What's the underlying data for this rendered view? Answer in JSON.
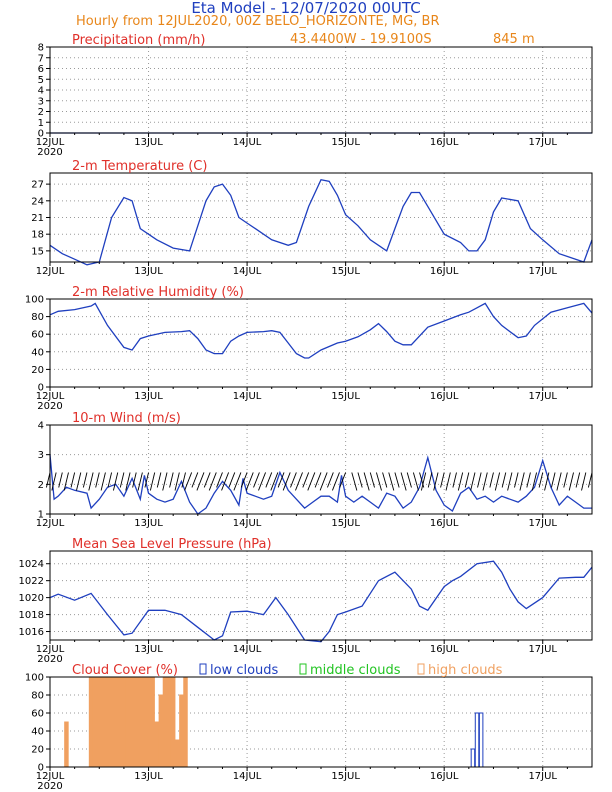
{
  "header": {
    "title": "Eta Model - 12/07/2020 00UTC",
    "subtitle": "Hourly from 12JUL2020, 00Z  BELO_HORIZONTE, MG, BR",
    "location": "43.4400W - 19.9100S",
    "elevation": "845  m"
  },
  "colors": {
    "title": "#1f3fbf",
    "subtitle": "#e8861a",
    "panel_title": "#e0302a",
    "line": "#1f3fbf",
    "low_clouds": "#1f3fbf",
    "middle_clouds": "#22c422",
    "high_clouds": "#f0a060"
  },
  "x_axis": {
    "labels": [
      "12JUL",
      "13JUL",
      "14JUL",
      "15JUL",
      "16JUL",
      "17JUL"
    ],
    "label_hours": [
      0,
      24,
      48,
      72,
      96,
      120
    ],
    "year_label": "2020",
    "range_hours": [
      0,
      132
    ]
  },
  "chart_data": [
    {
      "id": "precip",
      "type": "line",
      "title": "Precipitation (mm/h)",
      "ylim": [
        0,
        8
      ],
      "yticks": [
        0,
        1,
        2,
        3,
        4,
        5,
        6,
        7,
        8
      ],
      "series": [
        {
          "x": [
            0,
            132
          ],
          "y": [
            0,
            0
          ]
        }
      ],
      "show_year": true
    },
    {
      "id": "temp",
      "type": "line",
      "title": "2-m Temperature (C)",
      "ylim": [
        13,
        29
      ],
      "yticks": [
        15,
        18,
        21,
        24,
        27
      ],
      "series": [
        {
          "x": [
            0,
            3,
            6,
            9,
            12,
            15,
            18,
            20,
            22,
            24,
            26,
            30,
            34,
            38,
            40,
            42,
            44,
            46,
            48,
            50,
            54,
            58,
            60,
            63,
            66,
            68,
            70,
            72,
            75,
            78,
            82,
            84,
            86,
            88,
            90,
            92,
            96,
            100,
            102,
            104,
            106,
            108,
            110,
            114,
            117,
            120,
            124,
            128,
            130,
            132
          ],
          "y": [
            16,
            14.5,
            13.5,
            12.5,
            13,
            21,
            24.6,
            24,
            19,
            18,
            17,
            15.5,
            15,
            24,
            26.5,
            27,
            25,
            21,
            20,
            19,
            17,
            16,
            16.5,
            23,
            27.8,
            27.5,
            25,
            21.5,
            19.5,
            17,
            15,
            19,
            23,
            25.5,
            25.5,
            23,
            18,
            16.5,
            15,
            15,
            17,
            22,
            24.5,
            24,
            19,
            17,
            14.5,
            13.5,
            13,
            17
          ]
        }
      ],
      "show_year": false
    },
    {
      "id": "rh",
      "type": "line",
      "title": "2-m Relative Humidity (%)",
      "ylim": [
        0,
        100
      ],
      "yticks": [
        0,
        20,
        40,
        60,
        80,
        100
      ],
      "series": [
        {
          "x": [
            0,
            2,
            6,
            10,
            11,
            14,
            18,
            20,
            22,
            24,
            28,
            32,
            34,
            36,
            38,
            40,
            42,
            44,
            46,
            48,
            52,
            54,
            56,
            58,
            60,
            62,
            63,
            66,
            70,
            72,
            75,
            78,
            80,
            82,
            84,
            86,
            88,
            92,
            96,
            100,
            102,
            104,
            106,
            108,
            110,
            114,
            116,
            118,
            122,
            126,
            130,
            132
          ],
          "y": [
            82,
            86,
            88,
            92,
            95,
            70,
            45,
            42,
            55,
            58,
            62,
            63,
            64,
            55,
            42,
            38,
            38,
            52,
            58,
            62,
            63,
            64,
            62,
            50,
            38,
            33,
            33,
            42,
            50,
            52,
            57,
            65,
            72,
            63,
            52,
            48,
            48,
            68,
            75,
            82,
            85,
            90,
            95,
            80,
            70,
            56,
            58,
            70,
            85,
            90,
            95,
            84
          ]
        }
      ],
      "show_year": true
    },
    {
      "id": "wind",
      "type": "line",
      "title": "10-m Wind (m/s)",
      "ylim": [
        1,
        4
      ],
      "yticks": [
        1,
        2,
        3,
        4
      ],
      "series": [
        {
          "x": [
            0,
            1,
            2,
            4,
            6,
            9,
            10,
            12,
            14,
            16,
            18,
            20,
            22,
            23,
            24,
            26,
            28,
            30,
            32,
            34,
            36,
            38,
            40,
            42,
            44,
            46,
            47,
            48,
            50,
            52,
            54,
            56,
            58,
            60,
            62,
            64,
            66,
            68,
            70,
            71,
            72,
            74,
            76,
            78,
            80,
            82,
            84,
            86,
            88,
            90,
            92,
            94,
            96,
            98,
            100,
            102,
            104,
            106,
            108,
            110,
            112,
            114,
            116,
            118,
            120,
            122,
            124,
            126,
            128,
            130,
            132
          ],
          "y": [
            3.0,
            1.5,
            1.6,
            1.9,
            1.8,
            1.7,
            1.2,
            1.5,
            1.9,
            2.0,
            1.6,
            2.2,
            1.5,
            2.3,
            1.7,
            1.5,
            1.4,
            1.5,
            2.1,
            1.4,
            1.0,
            1.2,
            1.7,
            2.1,
            1.8,
            1.3,
            2.2,
            1.7,
            1.6,
            1.5,
            1.6,
            2.4,
            1.8,
            1.5,
            1.2,
            1.4,
            1.6,
            1.6,
            1.4,
            2.3,
            1.6,
            1.4,
            1.6,
            1.4,
            1.2,
            1.7,
            1.6,
            1.2,
            1.4,
            1.9,
            2.9,
            1.8,
            1.3,
            1.1,
            1.7,
            1.9,
            1.5,
            1.6,
            1.4,
            1.6,
            1.5,
            1.4,
            1.6,
            1.9,
            2.8,
            1.9,
            1.3,
            1.6,
            1.4,
            1.2,
            1.2
          ]
        }
      ],
      "show_year": false
    },
    {
      "id": "mslp",
      "type": "line",
      "title": "Mean Sea Level Pressure (hPa)",
      "ylim": [
        1015,
        1025.5
      ],
      "yticks": [
        1016,
        1018,
        1020,
        1022,
        1024
      ],
      "series": [
        {
          "x": [
            0,
            2,
            6,
            10,
            14,
            18,
            20,
            24,
            28,
            32,
            36,
            40,
            42,
            44,
            48,
            52,
            55,
            58,
            62,
            66,
            68,
            70,
            72,
            76,
            80,
            84,
            88,
            90,
            92,
            96,
            98,
            100,
            104,
            108,
            110,
            112,
            114,
            116,
            120,
            124,
            128,
            130,
            132
          ],
          "y": [
            1020,
            1020.4,
            1019.7,
            1020.5,
            1018,
            1015.6,
            1015.8,
            1018.5,
            1018.5,
            1018,
            1016.5,
            1015,
            1015.5,
            1018.3,
            1018.4,
            1018,
            1020,
            1018,
            1015,
            1014.8,
            1016,
            1018,
            1018.3,
            1019,
            1022,
            1023,
            1021,
            1019,
            1018.5,
            1021.3,
            1022,
            1022.5,
            1024,
            1024.3,
            1023,
            1021,
            1019.5,
            1018.7,
            1020,
            1022.3,
            1022.4,
            1022.4,
            1023.6
          ]
        }
      ],
      "show_year": true
    },
    {
      "id": "cloud",
      "type": "bar",
      "title": "Cloud Cover (%)",
      "ylim": [
        0,
        100
      ],
      "yticks": [
        0,
        20,
        40,
        60,
        80,
        100
      ],
      "legend": [
        "low clouds",
        "middle clouds",
        "high clouds"
      ],
      "series": [
        {
          "name": "low clouds",
          "x": [
            103,
            104,
            105
          ],
          "values": [
            20,
            60,
            60
          ]
        },
        {
          "name": "middle clouds",
          "x": [],
          "values": []
        },
        {
          "name": "high clouds",
          "x": [
            4,
            10,
            11,
            12,
            13,
            14,
            15,
            16,
            17,
            18,
            19,
            20,
            21,
            22,
            23,
            24,
            25,
            26,
            27,
            28,
            29,
            30,
            31,
            32,
            33
          ],
          "values": [
            50,
            100,
            100,
            100,
            100,
            100,
            100,
            100,
            100,
            100,
            100,
            100,
            100,
            100,
            100,
            100,
            100,
            50,
            80,
            100,
            100,
            100,
            30,
            80,
            100
          ]
        }
      ],
      "show_year": true
    }
  ]
}
